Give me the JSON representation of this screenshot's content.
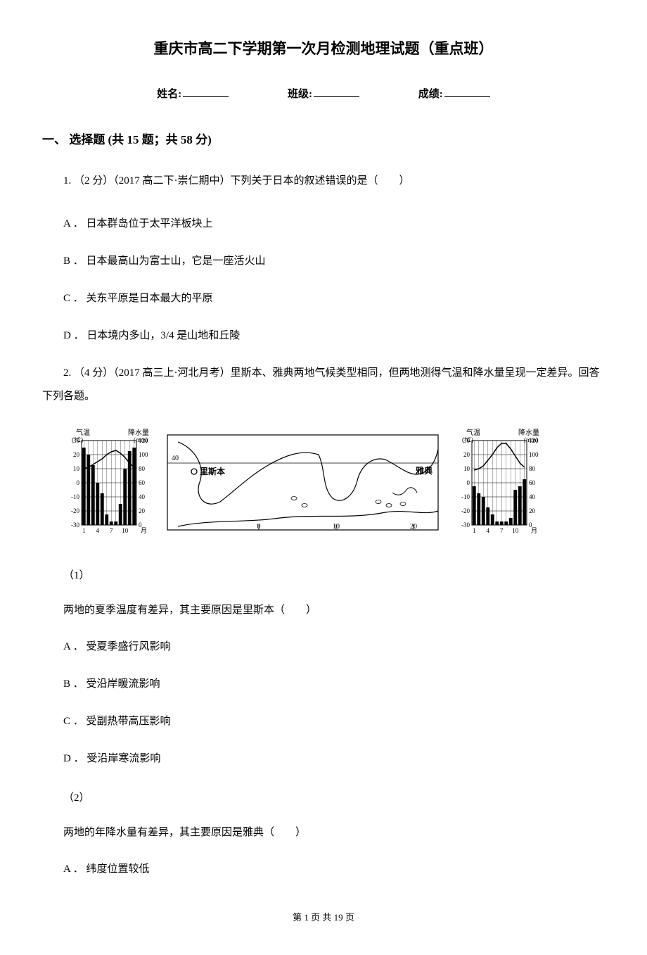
{
  "title": "重庆市高二下学期第一次月检测地理试题（重点班）",
  "info": {
    "name_label": "姓名:",
    "class_label": "班级:",
    "score_label": "成绩:"
  },
  "section": {
    "header": "一、 选择题 (共 15 题；共 58 分)"
  },
  "q1": {
    "stem": "1. （2 分）（2017 高二下·崇仁期中）下列关于日本的叙述错误的是（　　）",
    "opt_a": "A ． 日本群岛位于太平洋板块上",
    "opt_b": "B ． 日本最高山为富士山，它是一座活火山",
    "opt_c": "C ． 关东平原是日本最大的平原",
    "opt_d": "D ． 日本境内多山，3/4 是山地和丘陵"
  },
  "q2": {
    "stem": "2. （4 分）（2017 高三上·河北月考）里斯本、雅典两地气候类型相同，但两地测得气温和降水量呈现一定差异。回答下列各题。",
    "sub1_num": "（1）",
    "sub1_text": "两地的夏季温度有差异，其主要原因是里斯本（　　）",
    "sub1_a": "A ． 受夏季盛行风影响",
    "sub1_b": "B ． 受沿岸暖流影响",
    "sub1_c": "C ． 受副热带高压影响",
    "sub1_d": "D ． 受沿岸寒流影响",
    "sub2_num": "（2）",
    "sub2_text": "两地的年降水量有差异，其主要原因是雅典（　　）",
    "sub2_a": "A ． 纬度位置较低"
  },
  "figure": {
    "left_chart": {
      "type": "climate-chart",
      "temp_label": "气温",
      "temp_unit": "(℃)",
      "precip_label": "降水量",
      "precip_unit": "(mm)",
      "x_label": "月",
      "y_temp_ticks": [
        30,
        20,
        10,
        0,
        -10,
        -20,
        -30
      ],
      "y_precip_ticks": [
        120,
        100,
        80,
        60,
        40,
        20,
        0
      ],
      "x_ticks": [
        1,
        4,
        7,
        10
      ],
      "temp_values": [
        10,
        11,
        13,
        15,
        17,
        20,
        22,
        23,
        21,
        18,
        14,
        11
      ],
      "precip_values": [
        110,
        100,
        85,
        60,
        45,
        15,
        5,
        5,
        30,
        80,
        105,
        110
      ],
      "line_color": "#000000",
      "bar_color": "#000000",
      "grid_color": "#000000",
      "background_color": "#ffffff"
    },
    "map": {
      "type": "map",
      "lat_tick": "40",
      "lon_ticks": [
        "0",
        "10",
        "20"
      ],
      "lisbon_label": "里斯本",
      "lisbon_marker": "○",
      "athens_label": "雅典",
      "coastline_color": "#000000",
      "background_color": "#ffffff"
    },
    "right_chart": {
      "type": "climate-chart",
      "temp_label": "气温",
      "temp_unit": "(℃)",
      "precip_label": "降水量",
      "precip_unit": "(mm)",
      "x_label": "月",
      "y_temp_ticks": [
        30,
        20,
        10,
        0,
        -10,
        -20,
        -30
      ],
      "y_precip_ticks": [
        120,
        100,
        80,
        60,
        40,
        20,
        0
      ],
      "x_ticks": [
        1,
        4,
        7,
        10
      ],
      "temp_values": [
        9,
        10,
        12,
        16,
        20,
        25,
        28,
        28,
        24,
        19,
        14,
        11
      ],
      "precip_values": [
        55,
        45,
        40,
        25,
        15,
        5,
        5,
        5,
        10,
        50,
        55,
        65
      ],
      "line_color": "#000000",
      "bar_color": "#000000",
      "grid_color": "#000000",
      "background_color": "#ffffff"
    }
  },
  "footer": "第 1 页 共 19 页"
}
